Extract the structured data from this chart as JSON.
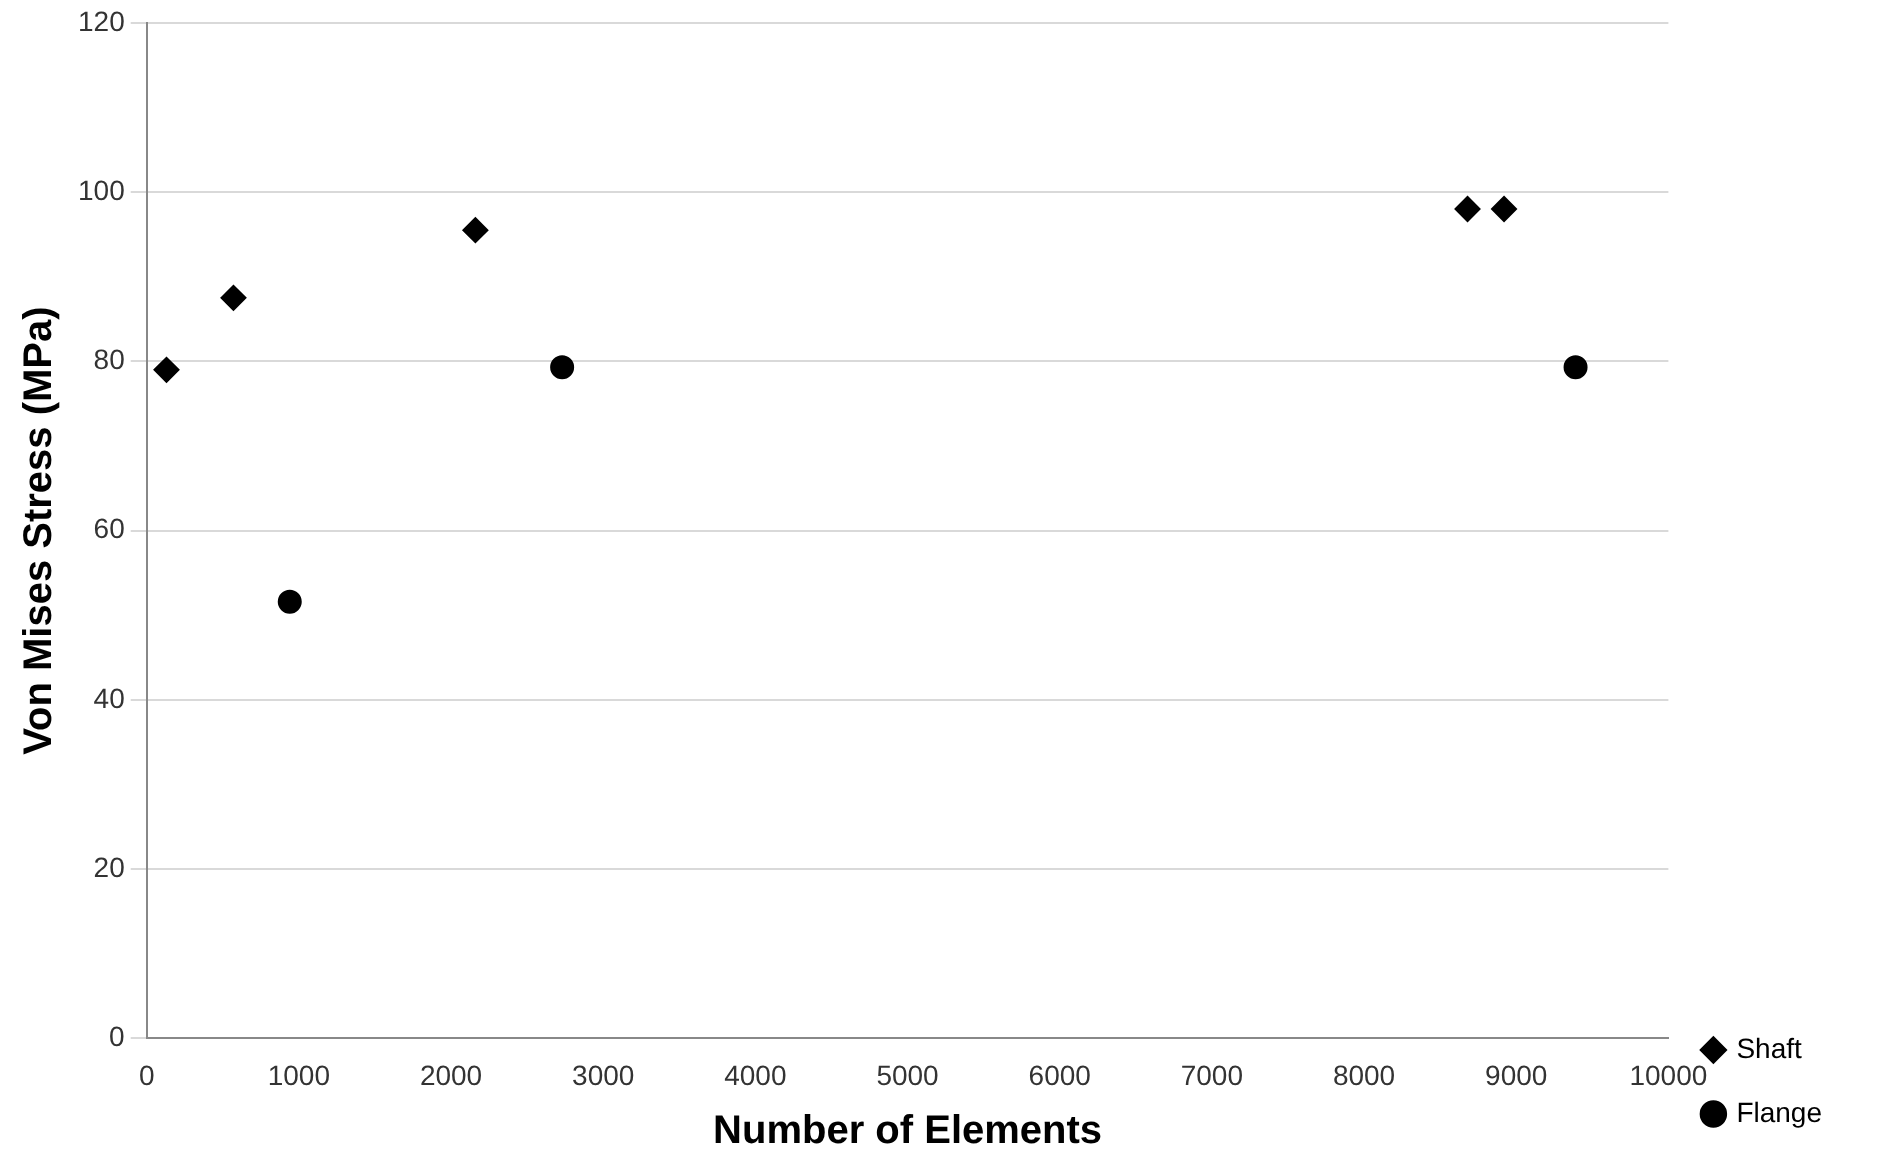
{
  "chart_data": {
    "type": "scatter",
    "xlabel": "Number of Elements",
    "ylabel": "Von Mises Stress (MPa)",
    "xlim": [
      0,
      10000
    ],
    "xticks": [
      0,
      1000,
      2000,
      3000,
      4000,
      5000,
      6000,
      7000,
      8000,
      9000,
      10000
    ],
    "ylim": [
      0,
      120
    ],
    "yticks": [
      0,
      20,
      40,
      60,
      80,
      100,
      120
    ],
    "grid": "y",
    "legend": "right",
    "series": [
      {
        "name": "Shaft",
        "color": "#000000",
        "marker": "diamond",
        "x": [
          130,
          570,
          2160,
          8680,
          8920
        ],
        "values": [
          79,
          87.5,
          95.5,
          98,
          98
        ]
      },
      {
        "name": "Flange",
        "color": "#000000",
        "marker": "circle",
        "x": [
          940,
          2730,
          9390
        ],
        "values": [
          51.6,
          79.3,
          79.3
        ]
      }
    ]
  }
}
